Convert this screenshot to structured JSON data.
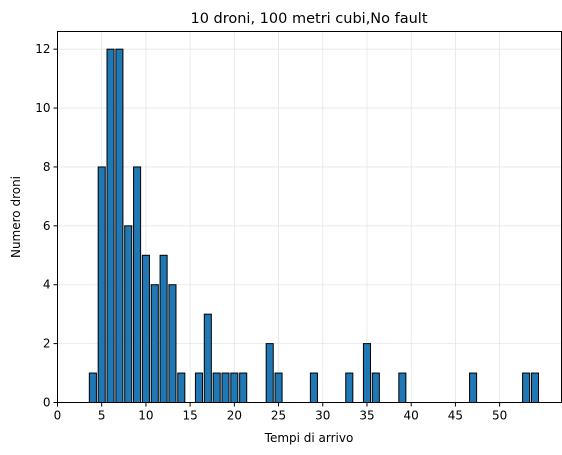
{
  "chart_data": {
    "type": "bar",
    "title": "10 droni, 100 metri cubi,No fault",
    "xlabel": "Tempi di arrivo",
    "ylabel": "Numero droni",
    "xlim": [
      0,
      57
    ],
    "ylim": [
      0,
      12.6
    ],
    "xticks": [
      0,
      5,
      10,
      15,
      20,
      25,
      30,
      35,
      40,
      45,
      50
    ],
    "yticks": [
      0,
      2,
      4,
      6,
      8,
      10,
      12
    ],
    "grid": true,
    "bar_color": "#1f77b4",
    "bar_edge_color": "#000000",
    "bars": [
      {
        "x": 4,
        "value": 1
      },
      {
        "x": 5,
        "value": 8
      },
      {
        "x": 6,
        "value": 12
      },
      {
        "x": 7,
        "value": 12
      },
      {
        "x": 8,
        "value": 6
      },
      {
        "x": 9,
        "value": 8
      },
      {
        "x": 10,
        "value": 5
      },
      {
        "x": 11,
        "value": 4
      },
      {
        "x": 12,
        "value": 5
      },
      {
        "x": 13,
        "value": 4
      },
      {
        "x": 14,
        "value": 1
      },
      {
        "x": 16,
        "value": 1
      },
      {
        "x": 17,
        "value": 3
      },
      {
        "x": 18,
        "value": 1
      },
      {
        "x": 19,
        "value": 1
      },
      {
        "x": 20,
        "value": 1
      },
      {
        "x": 21,
        "value": 1
      },
      {
        "x": 24,
        "value": 2
      },
      {
        "x": 25,
        "value": 1
      },
      {
        "x": 29,
        "value": 1
      },
      {
        "x": 33,
        "value": 1
      },
      {
        "x": 35,
        "value": 2
      },
      {
        "x": 36,
        "value": 1
      },
      {
        "x": 39,
        "value": 1
      },
      {
        "x": 47,
        "value": 1
      },
      {
        "x": 53,
        "value": 1
      },
      {
        "x": 54,
        "value": 1
      }
    ]
  }
}
